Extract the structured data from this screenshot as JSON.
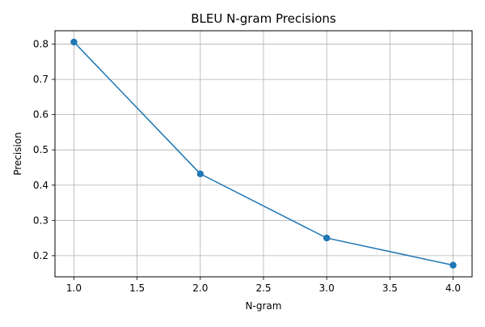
{
  "chart_data": {
    "type": "line",
    "title": "BLEU N-gram Precisions",
    "xlabel": "N-gram",
    "ylabel": "Precision",
    "x": [
      1.0,
      2.0,
      3.0,
      4.0
    ],
    "series": [
      {
        "values": [
          0.806,
          0.432,
          0.25,
          0.173
        ],
        "color": "#1f77b4",
        "marker": "circle"
      }
    ],
    "xlim": [
      0.85,
      4.15
    ],
    "ylim": [
      0.14,
      0.838
    ],
    "x_ticks": [
      1.0,
      1.5,
      2.0,
      2.5,
      3.0,
      3.5,
      4.0
    ],
    "x_tick_labels": [
      "1.0",
      "1.5",
      "2.0",
      "2.5",
      "3.0",
      "3.5",
      "4.0"
    ],
    "y_ticks": [
      0.2,
      0.3,
      0.4,
      0.5,
      0.6,
      0.7,
      0.8
    ],
    "y_tick_labels": [
      "0.2",
      "0.3",
      "0.4",
      "0.5",
      "0.6",
      "0.7",
      "0.8"
    ],
    "grid": true,
    "legend": "none"
  }
}
